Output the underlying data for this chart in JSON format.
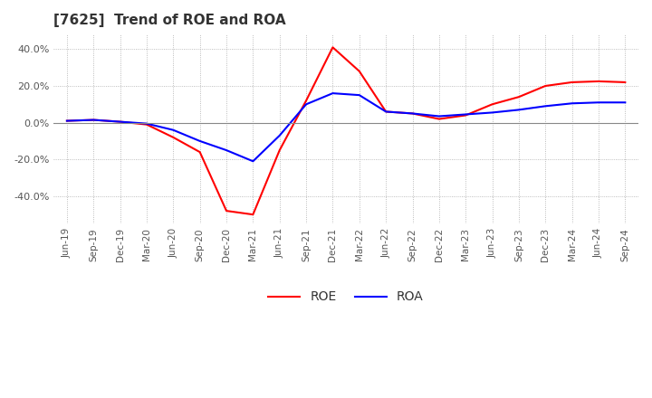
{
  "title": "[7625]  Trend of ROE and ROA",
  "xlabels": [
    "Jun-19",
    "Sep-19",
    "Dec-19",
    "Mar-20",
    "Jun-20",
    "Sep-20",
    "Dec-20",
    "Mar-21",
    "Jun-21",
    "Sep-21",
    "Dec-21",
    "Mar-22",
    "Jun-22",
    "Sep-22",
    "Dec-22",
    "Mar-23",
    "Jun-23",
    "Sep-23",
    "Dec-23",
    "Mar-24",
    "Jun-24",
    "Sep-24"
  ],
  "roe": [
    1.0,
    1.5,
    0.5,
    -1.0,
    -8.0,
    -16.0,
    -48.0,
    -50.0,
    -15.0,
    12.0,
    41.0,
    28.0,
    6.0,
    5.0,
    2.0,
    4.0,
    10.0,
    14.0,
    20.0,
    22.0,
    22.5,
    22.0
  ],
  "roa": [
    1.0,
    1.5,
    0.5,
    -0.5,
    -4.0,
    -10.0,
    -15.0,
    -21.0,
    -7.0,
    10.0,
    16.0,
    15.0,
    6.0,
    5.0,
    3.5,
    4.5,
    5.5,
    7.0,
    9.0,
    10.5,
    11.0,
    11.0
  ],
  "roe_color": "#ff0000",
  "roa_color": "#0000ff",
  "ylim": [
    -55,
    48
  ],
  "yticks": [
    -40.0,
    -20.0,
    0.0,
    20.0,
    40.0
  ],
  "background_color": "#ffffff",
  "grid_color": "#aaaaaa",
  "title_fontsize": 11,
  "line_width": 1.5
}
